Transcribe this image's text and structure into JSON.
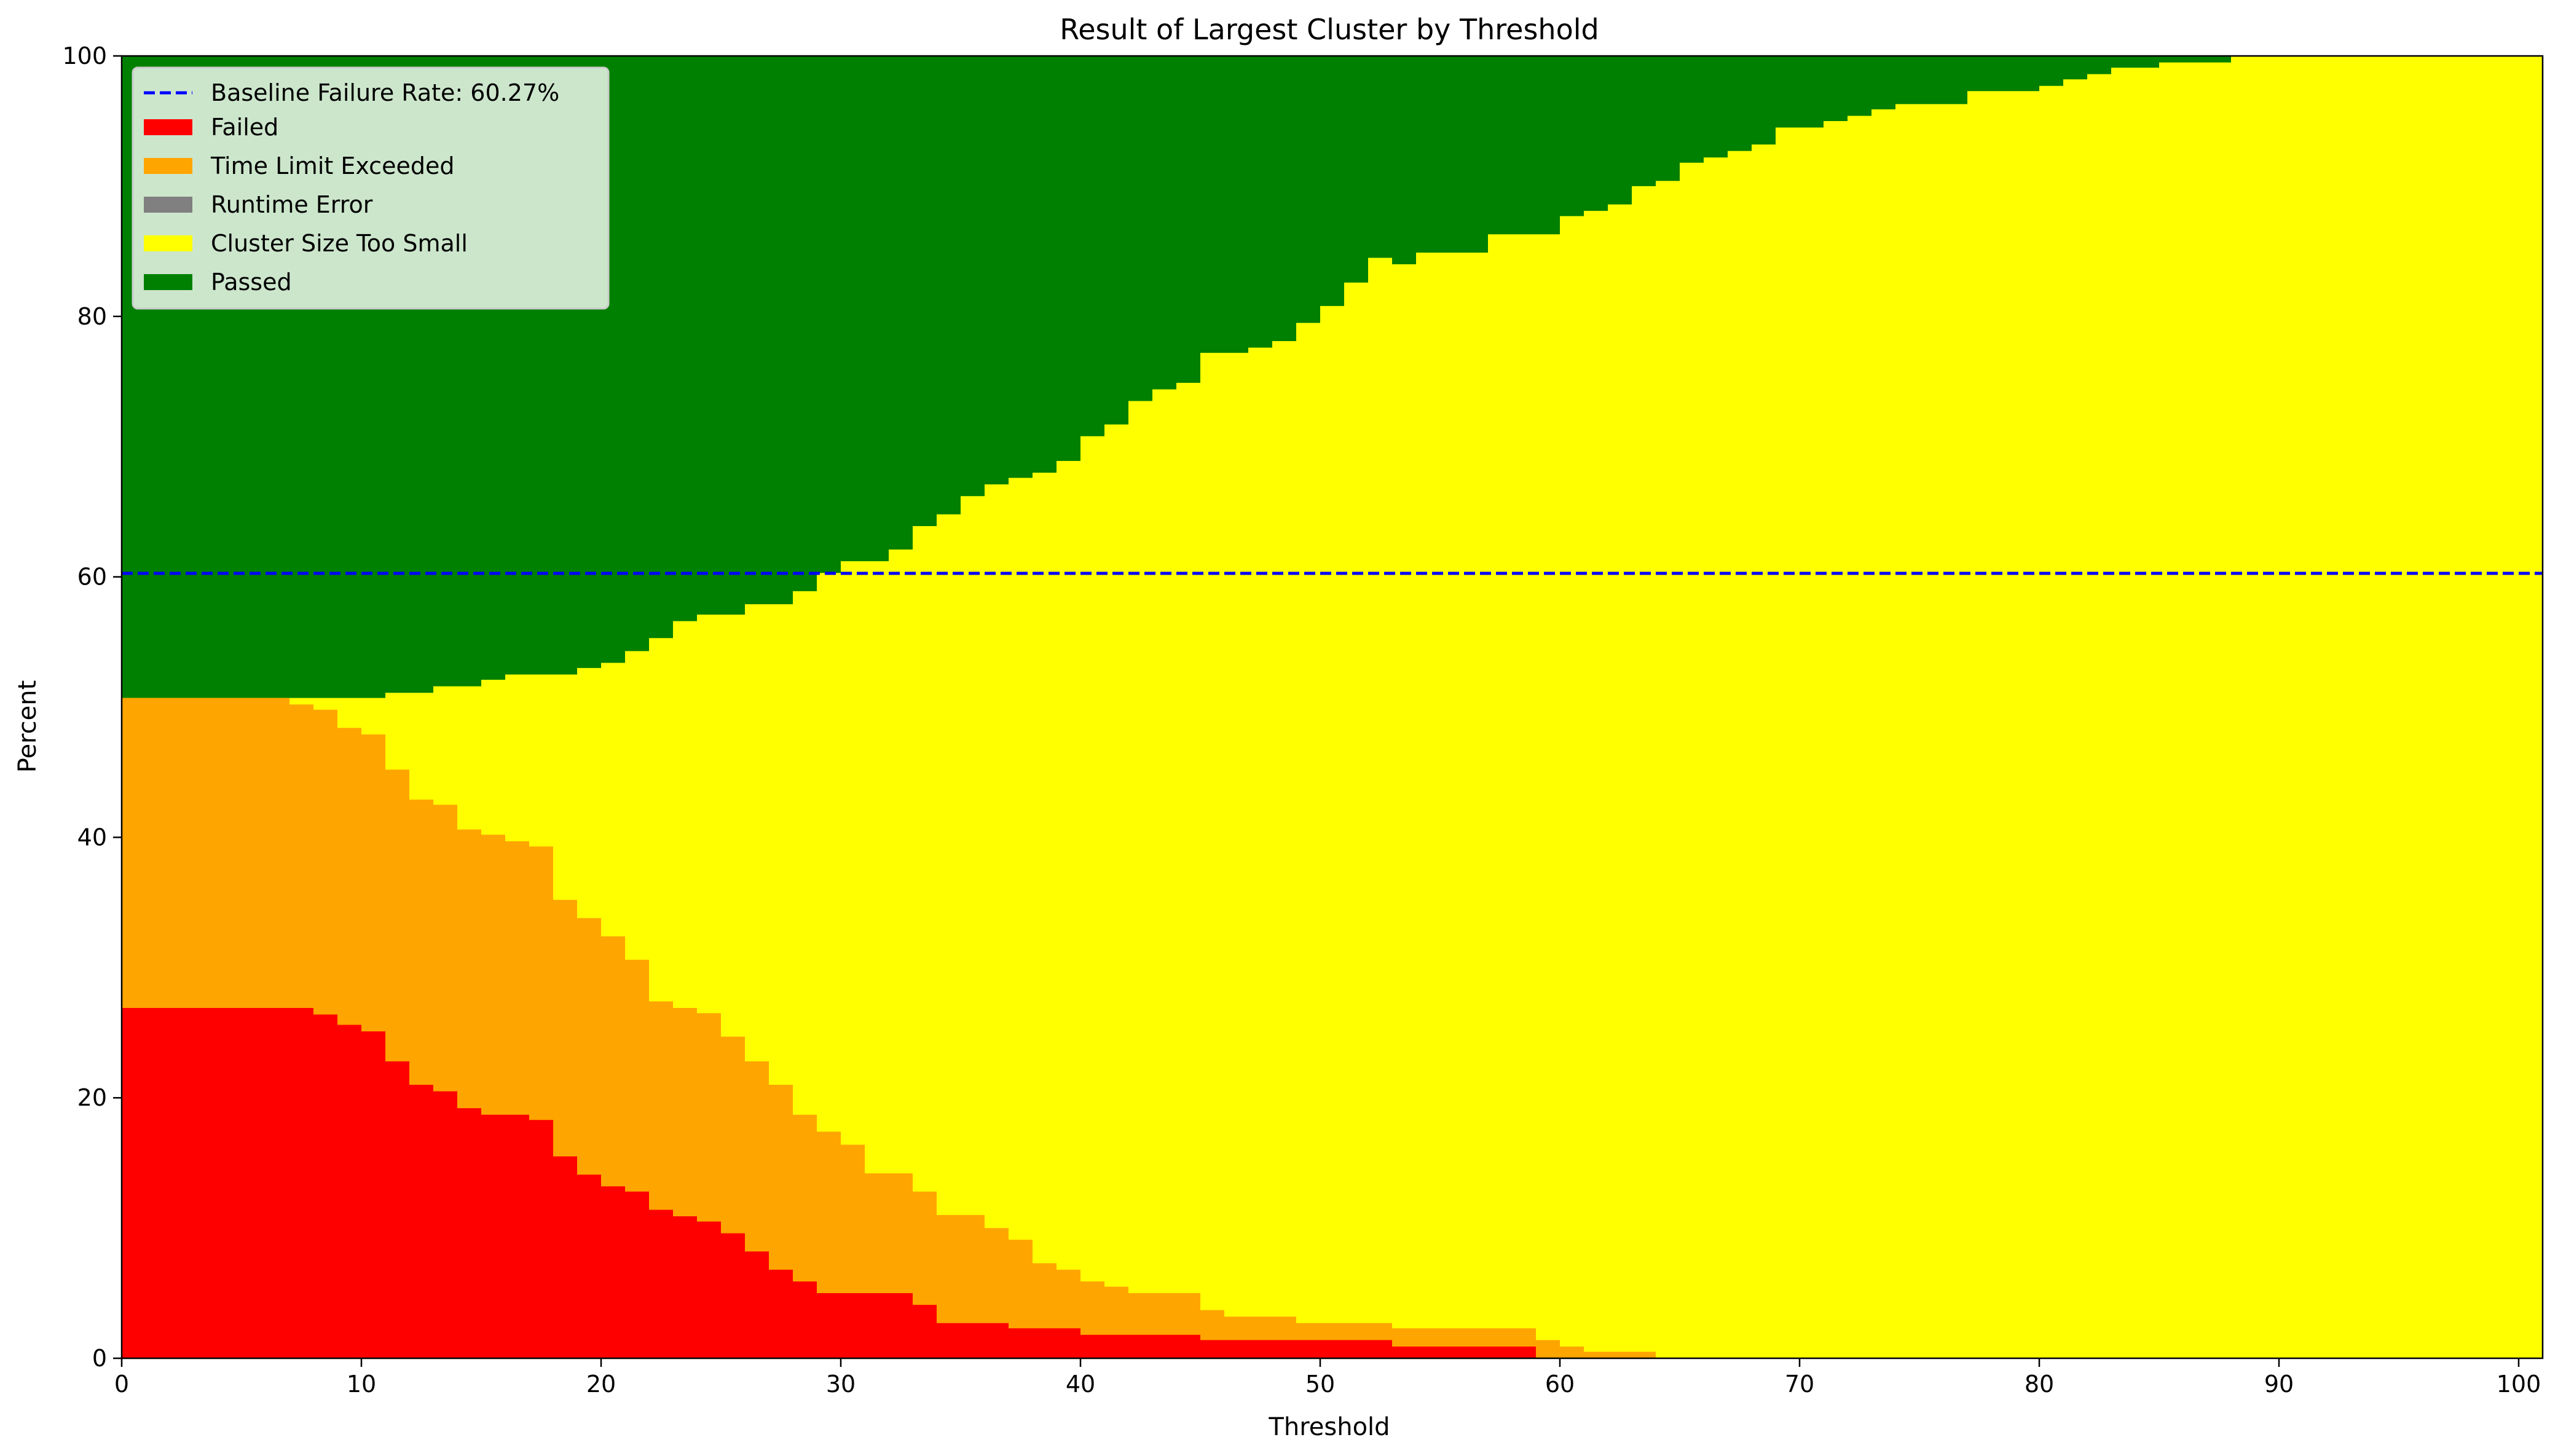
{
  "chart_data": {
    "type": "area",
    "step": true,
    "title": "Result of Largest Cluster by Threshold",
    "xlabel": "Threshold",
    "ylabel": "Percent",
    "xlim": [
      0,
      101
    ],
    "ylim": [
      0,
      100
    ],
    "x_ticks": [
      0,
      10,
      20,
      30,
      40,
      50,
      60,
      70,
      80,
      90,
      100
    ],
    "y_ticks": [
      0,
      20,
      40,
      60,
      80,
      100
    ],
    "grid": false,
    "legend_position": "top-left",
    "baseline": {
      "label": "Baseline Failure Rate: 60.27%",
      "value": 60.27,
      "color": "#0000ff",
      "style": "dashed"
    },
    "series": [
      {
        "name": "Failed",
        "color": "#ff0000",
        "points": [
          [
            0,
            26.9
          ],
          [
            8,
            26.4
          ],
          [
            9,
            25.6
          ],
          [
            10,
            25.1
          ],
          [
            11,
            22.8
          ],
          [
            12,
            21.0
          ],
          [
            13,
            20.5
          ],
          [
            14,
            19.2
          ],
          [
            15,
            18.7
          ],
          [
            17,
            18.3
          ],
          [
            18,
            15.5
          ],
          [
            19,
            14.1
          ],
          [
            20,
            13.2
          ],
          [
            21,
            12.8
          ],
          [
            22,
            11.4
          ],
          [
            23,
            10.9
          ],
          [
            24,
            10.5
          ],
          [
            25,
            9.6
          ],
          [
            26,
            8.2
          ],
          [
            27,
            6.8
          ],
          [
            28,
            5.9
          ],
          [
            29,
            5.0
          ],
          [
            33,
            4.1
          ],
          [
            34,
            2.7
          ],
          [
            37,
            2.3
          ],
          [
            40,
            1.8
          ],
          [
            45,
            1.4
          ],
          [
            53,
            0.9
          ],
          [
            59,
            0.0
          ]
        ]
      },
      {
        "name": "Time Limit Exceeded",
        "color": "#ffa500",
        "points": [
          [
            0,
            50.7
          ],
          [
            7,
            50.2
          ],
          [
            8,
            49.8
          ],
          [
            9,
            48.4
          ],
          [
            10,
            47.9
          ],
          [
            11,
            45.2
          ],
          [
            12,
            42.9
          ],
          [
            13,
            42.5
          ],
          [
            14,
            40.6
          ],
          [
            15,
            40.2
          ],
          [
            16,
            39.7
          ],
          [
            17,
            39.3
          ],
          [
            18,
            35.2
          ],
          [
            19,
            33.8
          ],
          [
            20,
            32.4
          ],
          [
            21,
            30.6
          ],
          [
            22,
            27.4
          ],
          [
            23,
            26.9
          ],
          [
            24,
            26.5
          ],
          [
            25,
            24.7
          ],
          [
            26,
            22.8
          ],
          [
            27,
            21.0
          ],
          [
            28,
            18.7
          ],
          [
            29,
            17.4
          ],
          [
            30,
            16.4
          ],
          [
            31,
            14.2
          ],
          [
            33,
            12.8
          ],
          [
            34,
            11.0
          ],
          [
            36,
            10.0
          ],
          [
            37,
            9.1
          ],
          [
            38,
            7.3
          ],
          [
            39,
            6.8
          ],
          [
            40,
            5.9
          ],
          [
            41,
            5.5
          ],
          [
            42,
            5.0
          ],
          [
            45,
            3.7
          ],
          [
            46,
            3.2
          ],
          [
            49,
            2.7
          ],
          [
            53,
            2.3
          ],
          [
            59,
            1.4
          ],
          [
            60,
            0.9
          ],
          [
            61,
            0.5
          ],
          [
            64,
            0.0
          ]
        ]
      },
      {
        "name": "Runtime Error",
        "color": "#808080",
        "points": [
          [
            0,
            0.0
          ]
        ]
      },
      {
        "name": "Cluster Size Too Small",
        "color": "#ffff00",
        "points": [
          [
            0,
            50.7
          ],
          [
            7,
            50.7
          ],
          [
            8,
            50.7
          ],
          [
            11,
            51.1
          ],
          [
            13,
            51.6
          ],
          [
            15,
            52.1
          ],
          [
            16,
            52.5
          ],
          [
            19,
            53.0
          ],
          [
            20,
            53.4
          ],
          [
            21,
            54.3
          ],
          [
            22,
            55.3
          ],
          [
            23,
            56.6
          ],
          [
            24,
            57.1
          ],
          [
            26,
            57.9
          ],
          [
            28,
            58.9
          ],
          [
            29,
            60.3
          ],
          [
            30,
            61.2
          ],
          [
            32,
            62.1
          ],
          [
            33,
            63.9
          ],
          [
            34,
            64.8
          ],
          [
            35,
            66.2
          ],
          [
            36,
            67.1
          ],
          [
            37,
            67.6
          ],
          [
            38,
            68.0
          ],
          [
            39,
            68.9
          ],
          [
            40,
            70.8
          ],
          [
            41,
            71.7
          ],
          [
            42,
            73.5
          ],
          [
            43,
            74.4
          ],
          [
            44,
            74.9
          ],
          [
            45,
            77.2
          ],
          [
            47,
            77.6
          ],
          [
            48,
            78.1
          ],
          [
            49,
            79.5
          ],
          [
            50,
            80.8
          ],
          [
            51,
            82.6
          ],
          [
            52,
            84.5
          ],
          [
            53,
            84.0
          ],
          [
            54,
            84.9
          ],
          [
            57,
            86.3
          ],
          [
            60,
            87.7
          ],
          [
            61,
            88.1
          ],
          [
            62,
            88.6
          ],
          [
            63,
            90.0
          ],
          [
            64,
            90.4
          ],
          [
            65,
            91.8
          ],
          [
            66,
            92.2
          ],
          [
            67,
            92.7
          ],
          [
            68,
            93.2
          ],
          [
            69,
            94.5
          ],
          [
            71,
            95.0
          ],
          [
            72,
            95.4
          ],
          [
            73,
            95.9
          ],
          [
            74,
            96.3
          ],
          [
            77,
            97.3
          ],
          [
            80,
            97.7
          ],
          [
            81,
            98.2
          ],
          [
            82,
            98.6
          ],
          [
            83,
            99.1
          ],
          [
            85,
            99.5
          ],
          [
            88,
            100.0
          ]
        ]
      },
      {
        "name": "Passed",
        "color": "#008000",
        "points": [
          [
            0,
            100.0
          ]
        ]
      }
    ]
  }
}
